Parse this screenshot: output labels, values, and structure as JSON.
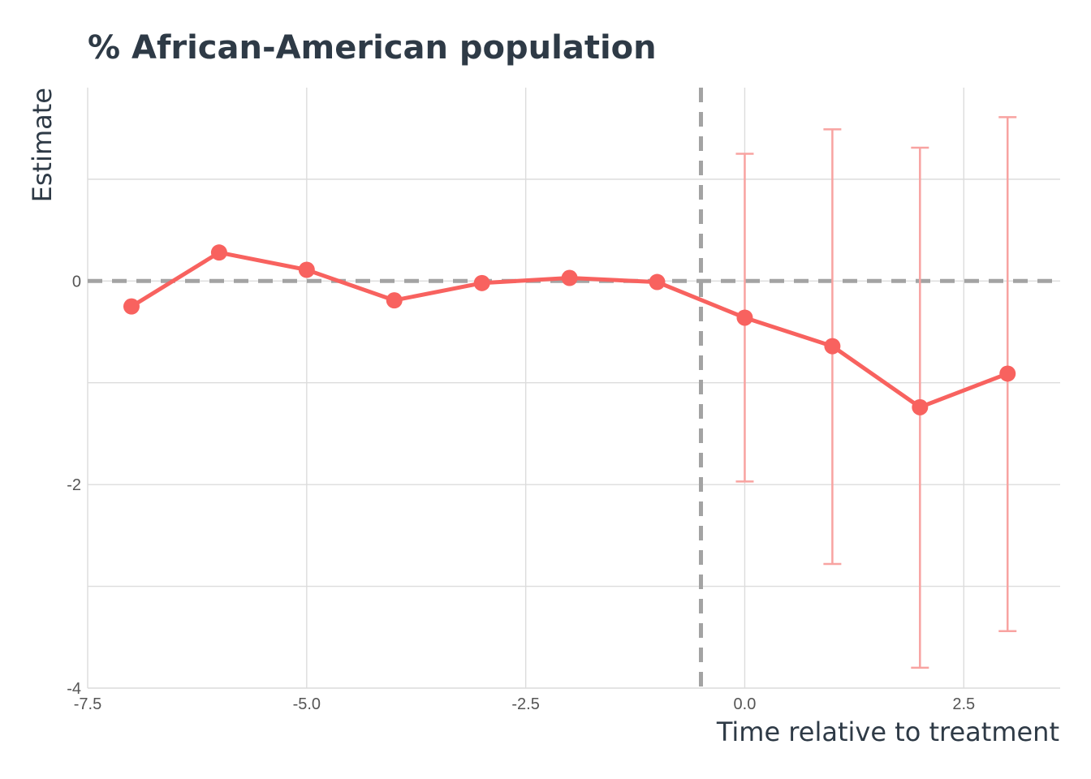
{
  "chart_data": {
    "type": "line",
    "title": "% African-American population",
    "xlabel": "Time relative to treatment",
    "ylabel": "Estimate",
    "xlim": [
      -7.5,
      3.6
    ],
    "ylim": [
      -4.0,
      1.9
    ],
    "x_ticks": [
      -7.5,
      -5.0,
      -2.5,
      0.0,
      2.5
    ],
    "x_tick_labels": [
      "-7.5",
      "-5.0",
      "-2.5",
      "0.0",
      "2.5"
    ],
    "y_ticks": [
      -4,
      -2,
      0
    ],
    "y_tick_labels": [
      "-4",
      "-2",
      "0"
    ],
    "y_minor_gridlines": [
      -3,
      -1,
      1
    ],
    "grid": true,
    "reference_lines": {
      "horizontal_y": 0,
      "vertical_x": -0.5,
      "style": "dashed",
      "color": "#a3a3a3"
    },
    "series": [
      {
        "color": "#f8625f",
        "error_bar_color": "#f8a3a1",
        "points": [
          {
            "x": -7,
            "y": -0.25
          },
          {
            "x": -6,
            "y": 0.28
          },
          {
            "x": -5,
            "y": 0.11
          },
          {
            "x": -4,
            "y": -0.19
          },
          {
            "x": -3,
            "y": -0.02
          },
          {
            "x": -2,
            "y": 0.03
          },
          {
            "x": -1,
            "y": -0.01
          },
          {
            "x": 0,
            "y": -0.36,
            "ci_low": -1.97,
            "ci_high": 1.25
          },
          {
            "x": 1,
            "y": -0.64,
            "ci_low": -2.78,
            "ci_high": 1.49
          },
          {
            "x": 2,
            "y": -1.24,
            "ci_low": -3.8,
            "ci_high": 1.31
          },
          {
            "x": 3,
            "y": -0.91,
            "ci_low": -3.44,
            "ci_high": 1.61
          }
        ]
      }
    ]
  }
}
